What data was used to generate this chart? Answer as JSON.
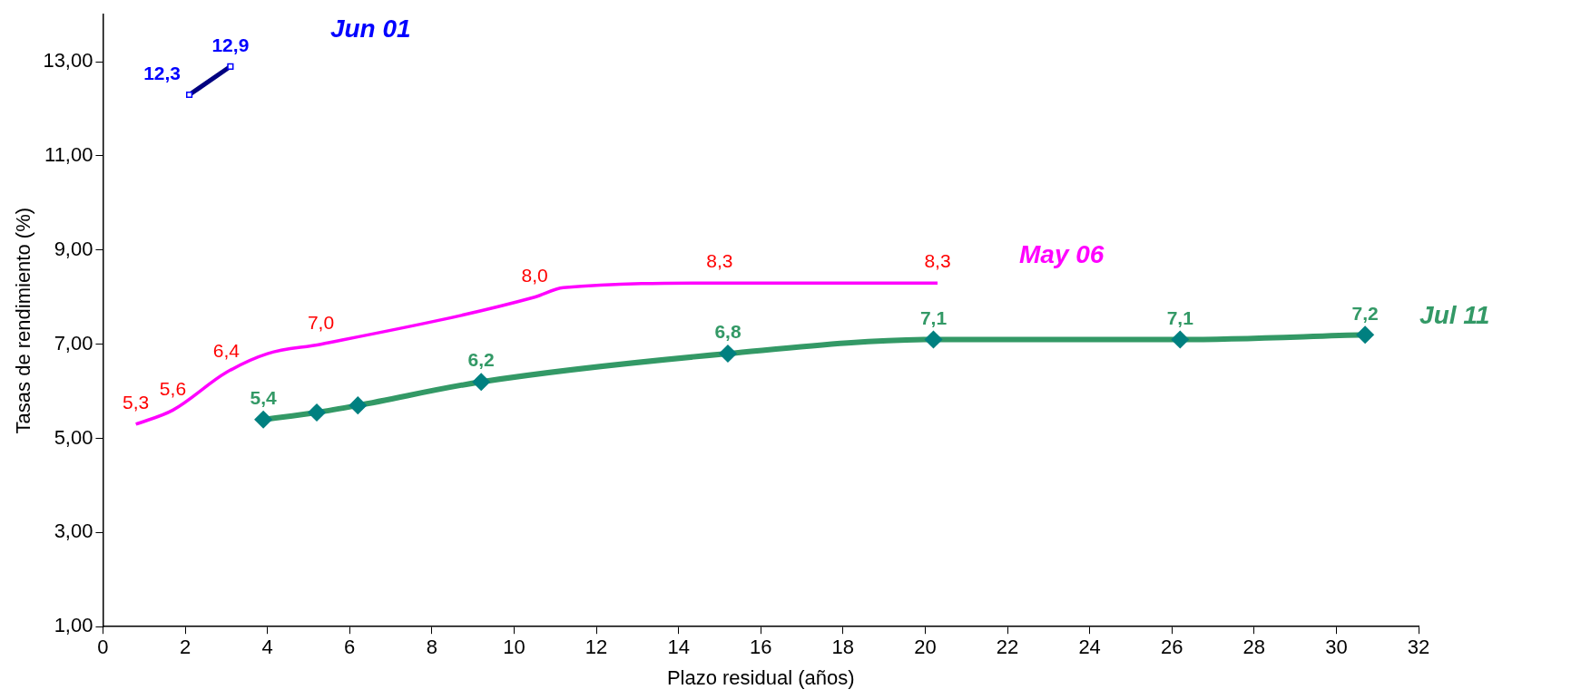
{
  "chart_data": {
    "type": "line",
    "xlabel": "Plazo residual (años)",
    "ylabel": "Tasas de rendimiento (%)",
    "xlim": [
      0,
      32
    ],
    "xticks": [
      0,
      2,
      4,
      6,
      8,
      10,
      12,
      14,
      16,
      18,
      20,
      22,
      24,
      26,
      28,
      30,
      32
    ],
    "ylim": [
      1,
      14
    ],
    "yticks": [
      {
        "value": 1,
        "label": "1,00"
      },
      {
        "value": 3,
        "label": "3,00"
      },
      {
        "value": 5,
        "label": "5,00"
      },
      {
        "value": 7,
        "label": "7,00"
      },
      {
        "value": 9,
        "label": "9,00"
      },
      {
        "value": 11,
        "label": "11,00"
      },
      {
        "value": 13,
        "label": "13,00"
      }
    ],
    "grid": false,
    "legend": false,
    "series": [
      {
        "name": "Jun 01",
        "color": "#000080",
        "marker": "square",
        "x": [
          2.1,
          3.1
        ],
        "values": [
          12.3,
          12.9
        ],
        "value_labels": [
          "12,3",
          "12,9"
        ]
      },
      {
        "name": "May 06",
        "color": "#ff00ff",
        "marker": "none",
        "x": [
          0.8,
          1.7,
          3.0,
          4.0,
          5.3,
          10.5,
          11.2,
          15.0,
          20.3
        ],
        "values": [
          5.3,
          5.6,
          6.4,
          6.8,
          7.0,
          8.0,
          8.2,
          8.3,
          8.3
        ],
        "value_labels": [
          "5,3",
          "5,6",
          "6,4",
          null,
          "7,0",
          "8,0",
          null,
          "8,3",
          "8,3"
        ]
      },
      {
        "name": "Jul 11",
        "color": "#339966",
        "marker": "diamond",
        "x": [
          3.9,
          5.2,
          6.2,
          9.2,
          15.2,
          20.2,
          26.2,
          30.7
        ],
        "values": [
          5.4,
          5.55,
          5.7,
          6.2,
          6.8,
          7.1,
          7.1,
          7.2
        ],
        "value_labels": [
          "5,4",
          null,
          null,
          "6,2",
          "6,8",
          "7,1",
          "7,1",
          "7,2"
        ]
      }
    ]
  }
}
